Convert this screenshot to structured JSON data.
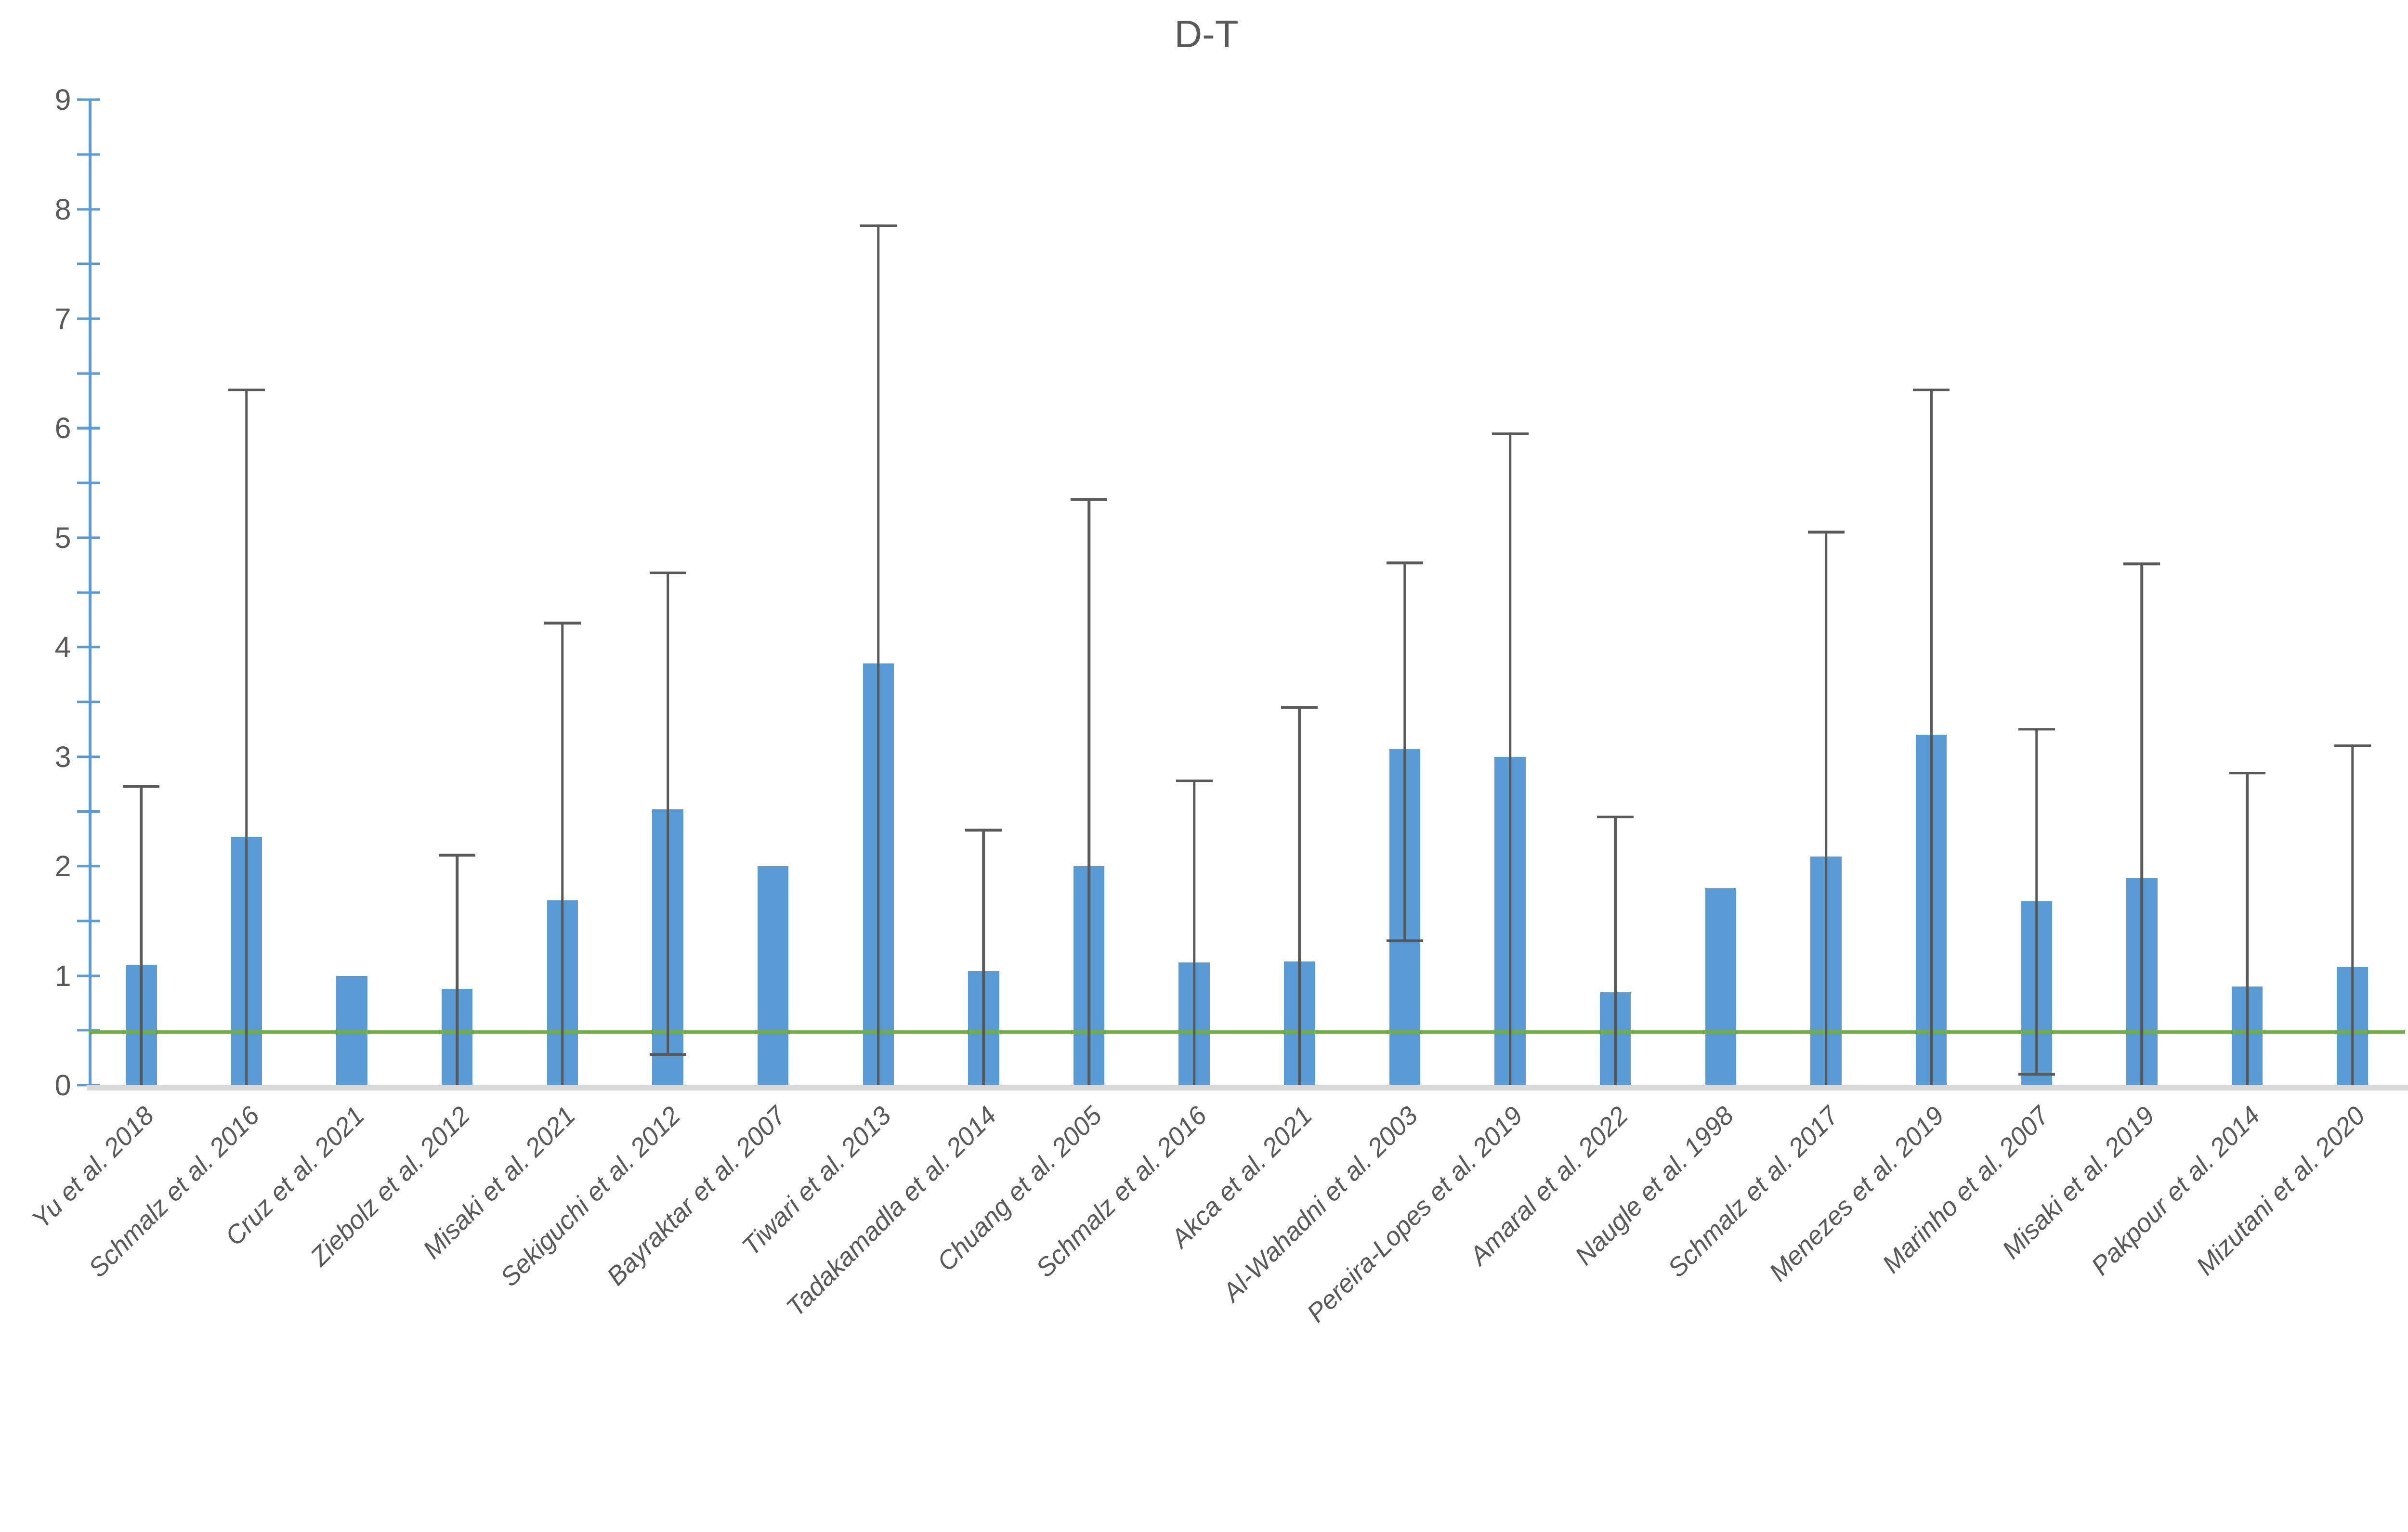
{
  "page": {
    "background": "#FFFFFF"
  },
  "chart_data": {
    "type": "bar",
    "title": "D-T",
    "categories": [
      "Yu et al. 2018",
      "Schmalz et al. 2016",
      "Cruz et al. 2021",
      "Ziebolz et al. 2012",
      "Misaki et al. 2021",
      "Sekiguchi et al. 2012",
      "Bayraktar et al. 2007",
      "Tiwari et al. 2013",
      "Tadakamadla et al. 2014",
      "Chuang et al. 2005",
      "Schmalz et al. 2016",
      "Akca et al. 2021",
      "Al-Wahadni et al. 2003",
      "Pereira-Lopes et al. 2019",
      "Amaral et al. 2022",
      "Naugle et al. 1998",
      "Schmalz et al. 2017",
      "Menezes et al. 2019",
      "Marinho et al. 2007",
      "Misaki et al. 2019",
      "Pakpour et al. 2014",
      "Mizutani et al. 2020"
    ],
    "values": [
      1.1,
      2.27,
      1.0,
      0.88,
      1.69,
      2.52,
      2.0,
      3.85,
      1.04,
      2.0,
      1.12,
      1.13,
      3.07,
      3.0,
      0.85,
      1.8,
      2.09,
      3.2,
      1.68,
      1.89,
      0.9,
      1.08
    ],
    "error_top": [
      2.73,
      6.35,
      null,
      2.1,
      4.22,
      4.68,
      null,
      7.85,
      2.33,
      5.35,
      2.78,
      3.45,
      4.77,
      5.95,
      2.45,
      null,
      5.05,
      6.35,
      3.25,
      4.76,
      2.85,
      3.1
    ],
    "error_bottom": [
      0,
      0,
      null,
      0,
      0,
      0.28,
      null,
      0,
      0,
      0,
      0,
      0,
      1.32,
      0,
      0,
      null,
      0,
      0,
      0.1,
      0,
      0,
      0
    ],
    "ylim": [
      0,
      9
    ],
    "y_major_tick_step": 1,
    "y_minor_tick_step": 0.5,
    "y_tick_labels": [
      "0",
      "1",
      "2",
      "3",
      "4",
      "5",
      "6",
      "7",
      "8",
      "9"
    ],
    "x_label_rotation_deg": 45,
    "grid": false,
    "legend": false,
    "reference_line": {
      "value": 0.5,
      "color": "#70AD47"
    },
    "colors": {
      "bar": "#5B9BD5",
      "error_bar": "#595959",
      "y_axis_line": "#5B9BD5",
      "x_axis_line": "#D9D9D9",
      "reference_line": "#70AD47",
      "text": "#595959"
    }
  }
}
